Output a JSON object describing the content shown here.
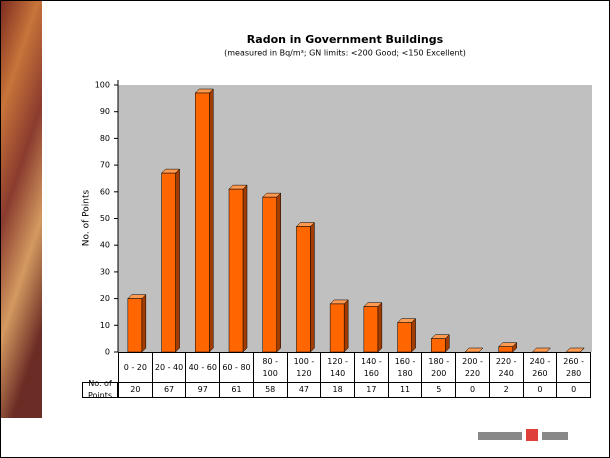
{
  "chart_data": {
    "type": "bar",
    "title": "Radon in Government Buildings",
    "subtitle": "(measured in Bq/m³; GN limits: <200 Good; <150 Excellent)",
    "y_label": "No. of Points",
    "categories": [
      "0 - 20",
      "20 - 40",
      "40 - 60",
      "60 - 80",
      "80 - 100",
      "100 - 120",
      "120 - 140",
      "140 - 160",
      "160 - 180",
      "180 - 200",
      "200 - 220",
      "220 - 240",
      "240 - 260",
      "260 - 280"
    ],
    "series": [
      {
        "name": "No. of Points",
        "color": "#ff6600",
        "values": [
          20,
          67,
          97,
          61,
          58,
          47,
          18,
          17,
          11,
          5,
          0,
          2,
          0,
          0
        ]
      }
    ],
    "ylim": [
      0,
      100
    ],
    "yticks": [
      0,
      10,
      20,
      30,
      40,
      50,
      60,
      70,
      80,
      90,
      100
    ]
  }
}
